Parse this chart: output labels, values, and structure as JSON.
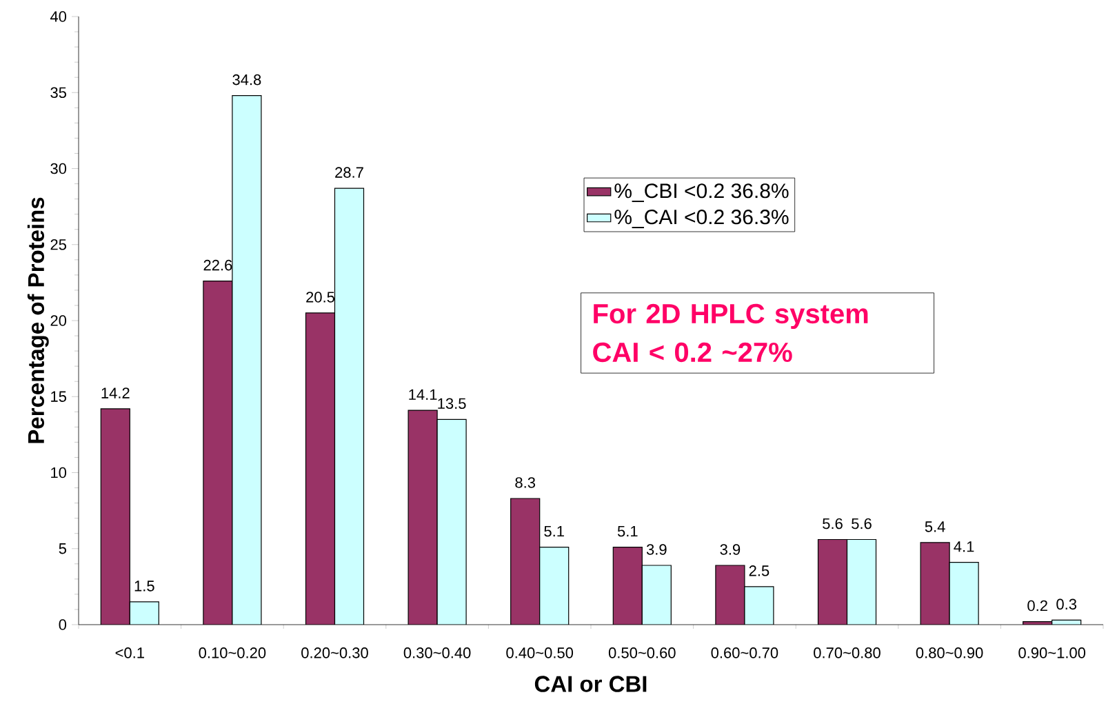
{
  "chart_data": {
    "type": "bar",
    "xlabel": "CAI or CBI",
    "ylabel": "Percentage of Proteins",
    "categories": [
      "<0.1",
      "0.10~0.20",
      "0.20~0.30",
      "0.30~0.40",
      "0.40~0.50",
      "0.50~0.60",
      "0.60~0.70",
      "0.70~0.80",
      "0.80~0.90",
      "0.90~1.00"
    ],
    "series": [
      {
        "name": "%_CBI  <0.2 36.8%",
        "color": "#993366",
        "values": [
          14.2,
          22.6,
          20.5,
          14.1,
          8.3,
          5.1,
          3.9,
          5.6,
          5.4,
          0.2
        ]
      },
      {
        "name": "%_CAI  <0.2 36.3%",
        "color": "#ccffff",
        "values": [
          1.5,
          34.8,
          28.7,
          13.5,
          5.1,
          3.9,
          2.5,
          5.6,
          4.1,
          0.3
        ]
      }
    ],
    "ylim": [
      0,
      40
    ],
    "yticks": [
      0,
      5,
      10,
      15,
      20,
      25,
      30,
      35,
      40
    ],
    "data_labels": true,
    "legend": "top right",
    "annotations": [
      "For 2D HPLC system",
      "CAI < 0.2 ~27%"
    ]
  }
}
